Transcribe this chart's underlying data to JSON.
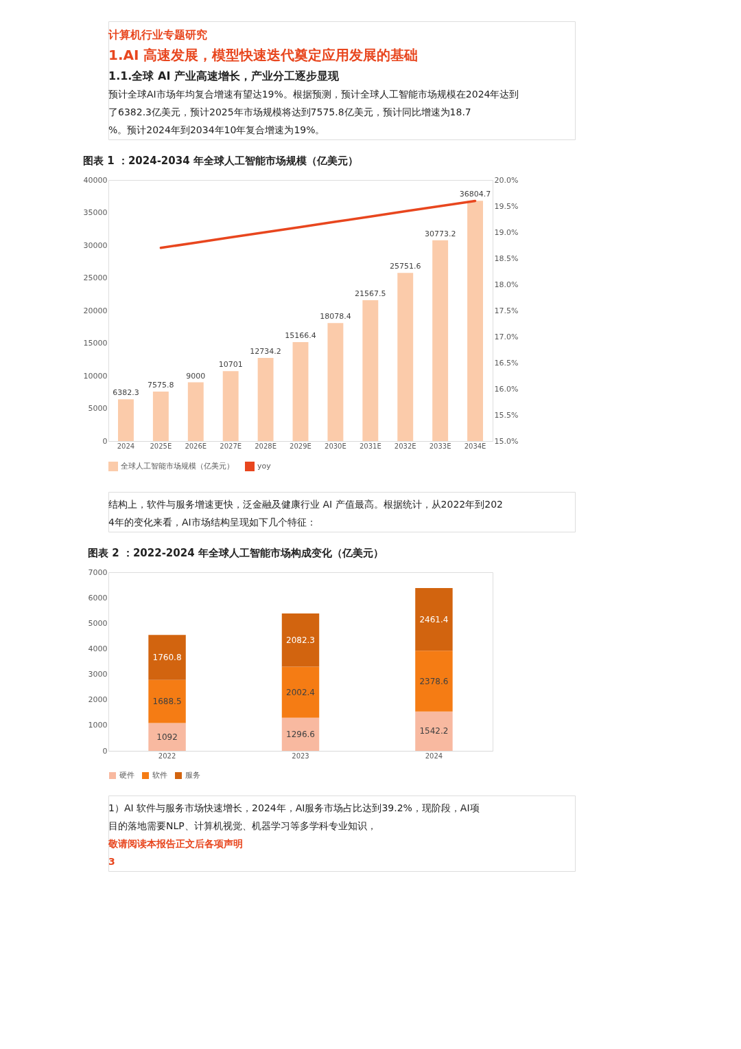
{
  "chart_data": [
    {
      "type": "bar",
      "title": "图表 1 ：2024-2034 年全球人工智能市场规模（亿美元）",
      "annotations": [
        "计算机行业专题研究",
        "1.AI 高速发展，模型快速迭代奠定应用发展的基础",
        "1.1.全球 AI 产业高速增长，产业分工逐步显现",
        "预计全球AI市场年均复合增速有望达19%。根据预测，预计全球人工智能市场规模在2024年达到了6382.3亿美元，预计2025年市场规模将达到7575.8亿美元，预计同比增速为18.7%。预计2024年到2034年10年复合增速为19%。"
      ],
      "categories": [
        "2024",
        "2025E",
        "2026E",
        "2027E",
        "2028E",
        "2029E",
        "2030E",
        "2031E",
        "2032E",
        "2033E",
        "2034E"
      ],
      "series": [
        {
          "name": "全球人工智能市场规模（亿美元）",
          "type": "bar",
          "color": "#fbcbaa",
          "values": [
            6382.3,
            7575.8,
            9000,
            10701,
            12734.2,
            15166.4,
            18078.4,
            21567.5,
            25751.6,
            30773.2,
            36804.7
          ],
          "value_labels": [
            "6382.3",
            "7575.8",
            "9000",
            "10701",
            "12734.2",
            "15166.4",
            "18078.4",
            "21567.5",
            "25751.6",
            "30773.2",
            "36804.7"
          ]
        },
        {
          "name": "yoy",
          "type": "line",
          "axis": "y2",
          "color": "#e8461e",
          "values": [
            null,
            18.7,
            18.8,
            18.9,
            19.0,
            19.1,
            19.2,
            19.3,
            19.4,
            19.5,
            19.6
          ]
        }
      ],
      "ylim": [
        0,
        40000
      ],
      "yticks": [
        0,
        5000,
        10000,
        15000,
        20000,
        25000,
        30000,
        35000,
        40000
      ],
      "y2lim": [
        15,
        20
      ],
      "y2ticks": [
        {
          "value": 15,
          "label": "15.0%"
        },
        {
          "value": 15.5,
          "label": "15.5%"
        },
        {
          "value": 16,
          "label": "16.0%"
        },
        {
          "value": 16.5,
          "label": "16.5%"
        },
        {
          "value": 17,
          "label": "17.0%"
        },
        {
          "value": 17.5,
          "label": "17.5%"
        },
        {
          "value": 18,
          "label": "18.0%"
        },
        {
          "value": 18.5,
          "label": "18.5%"
        },
        {
          "value": 19,
          "label": "19.0%"
        },
        {
          "value": 19.5,
          "label": "19.5%"
        },
        {
          "value": 20,
          "label": "20.0%"
        }
      ],
      "legend": "bottom",
      "grid": false
    },
    {
      "type": "bar",
      "stacked": true,
      "title": "图表 2 ：2022-2024 年全球人工智能市场构成变化（亿美元）",
      "annotations": [
        "结构上，软件与服务增速更快，泛金融及健康行业 AI 产值最高。根据统计，从2022年到2024年的变化来看，AI市场结构呈现如下几个特征：",
        "1）AI 软件与服务市场快速增长，2024年，AI服务市场占比达到39.2%，现阶段，AI项目的落地需要NLP、计算机视觉、机器学习等多学科专业知识，",
        "敬请阅读本报告正文后各项声明",
        "3"
      ],
      "categories": [
        "2022",
        "2023",
        "2024"
      ],
      "series": [
        {
          "name": "硬件",
          "color": "#f8b9a0",
          "values": [
            1092,
            1296.6,
            1542.2
          ]
        },
        {
          "name": "软件",
          "color": "#f57c14",
          "values": [
            1688.5,
            2002.4,
            2378.6
          ]
        },
        {
          "name": "服务",
          "color": "#d2640f",
          "values": [
            1760.8,
            2082.3,
            2461.4
          ]
        }
      ],
      "ylim": [
        0,
        7000
      ],
      "yticks": [
        0,
        1000,
        2000,
        3000,
        4000,
        5000,
        6000,
        7000
      ],
      "data_labels": true,
      "legend": "bottom",
      "grid": false
    }
  ]
}
